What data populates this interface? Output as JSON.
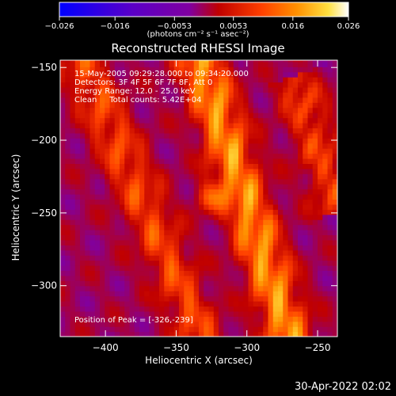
{
  "chart_data": {
    "type": "heatmap",
    "title": "Reconstructed RHESSI Image",
    "xlabel": "Heliocentric X (arcsec)",
    "ylabel": "Heliocentric Y (arcsec)",
    "xlim": [
      -432,
      -236
    ],
    "ylim": [
      -335,
      -145
    ],
    "x_ticks": [
      -400,
      -350,
      -300,
      -250
    ],
    "y_ticks": [
      -150,
      -200,
      -250,
      -300
    ],
    "x_tick_labels": [
      "−400",
      "−350",
      "−300",
      "−250"
    ],
    "y_tick_labels": [
      "−150",
      "−200",
      "−250",
      "−300"
    ],
    "colorbar": {
      "range": [
        -0.026,
        0.026
      ],
      "ticks": [
        -0.026,
        -0.016,
        -0.0053,
        0.0053,
        0.016,
        0.026
      ],
      "tick_labels": [
        "−0.026",
        "−0.016",
        "−0.0053",
        "0.0053",
        "0.016",
        "0.026"
      ],
      "unit_label": "(photons cm⁻² s⁻¹ asec⁻²)",
      "colors": [
        "#0000ff",
        "#5a00c8",
        "#8000a0",
        "#c00000",
        "#ff4000",
        "#ff9000",
        "#ffe040",
        "#ffffff"
      ]
    },
    "annotations": [
      "15-May-2005 09:29:28.000 to 09:34:20.000",
      "Detectors: 3F 4F 5F 6F 7F 8F, Att 0",
      "Energy Range: 12.0 - 25.0 keV",
      "Clean     Total counts: 5.42E+04"
    ],
    "peak_label": "Position of Peak = [-326,-239]",
    "peak": [
      -326,
      -239
    ],
    "ridges": [
      {
        "x0": -417,
        "y0": -145,
        "x1": -332,
        "y1": -335,
        "peak": 0.014
      },
      {
        "x0": -333,
        "y0": -145,
        "x1": -270,
        "y1": -335,
        "peak": 0.024
      },
      {
        "x0": -265,
        "y0": -160,
        "x1": -236,
        "y1": -245,
        "peak": 0.012
      }
    ]
  },
  "timestamp": "30-Apr-2022 02:02"
}
